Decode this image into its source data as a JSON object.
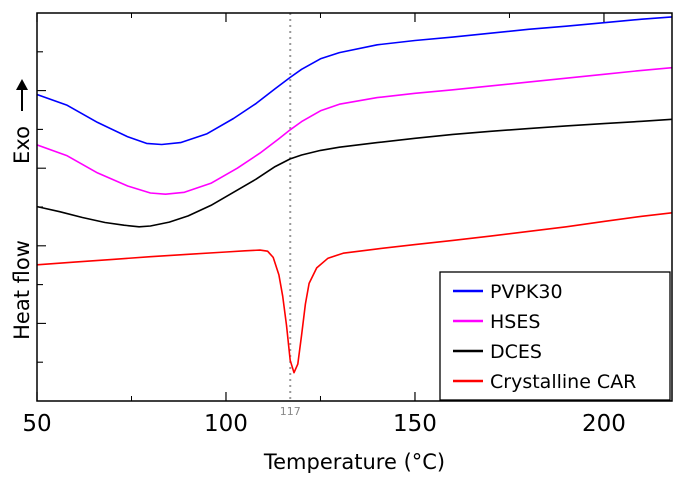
{
  "chart_data": {
    "type": "line",
    "xlabel": "Temperature (°C)",
    "ylabel": "Heat flow",
    "ylabel_arrow_label": "Exo",
    "xlim": [
      50,
      218
    ],
    "ylim": [
      0,
      100
    ],
    "x_ticks": [
      50,
      100,
      150,
      200
    ],
    "x_minor_ticks": [
      75,
      125,
      175
    ],
    "y_ticks_unlabeled": [
      10,
      20,
      30,
      40,
      50,
      60,
      70,
      80,
      90
    ],
    "grid": false,
    "legend_position": "bottom-right",
    "annotation": {
      "label": "117",
      "x": 117,
      "style": "dotted vertical line"
    },
    "series": [
      {
        "name": "PVPK30",
        "color": "#0000ff",
        "points": [
          [
            50,
            79
          ],
          [
            58,
            76.2
          ],
          [
            66,
            71.8
          ],
          [
            74,
            68.1
          ],
          [
            79,
            66.4
          ],
          [
            83,
            66.1
          ],
          [
            88,
            66.6
          ],
          [
            95,
            68.9
          ],
          [
            102,
            72.8
          ],
          [
            108,
            76.7
          ],
          [
            113,
            80.5
          ],
          [
            117,
            83.4
          ],
          [
            120,
            85.5
          ],
          [
            125,
            88.2
          ],
          [
            130,
            89.8
          ],
          [
            140,
            91.8
          ],
          [
            150,
            92.9
          ],
          [
            160,
            93.8
          ],
          [
            170,
            94.8
          ],
          [
            180,
            95.8
          ],
          [
            190,
            96.6
          ],
          [
            200,
            97.5
          ],
          [
            210,
            98.4
          ],
          [
            218,
            99
          ]
        ]
      },
      {
        "name": "HSES",
        "color": "#ff00ff",
        "points": [
          [
            50,
            66
          ],
          [
            58,
            63.2
          ],
          [
            66,
            58.8
          ],
          [
            74,
            55.4
          ],
          [
            80,
            53.6
          ],
          [
            84,
            53.3
          ],
          [
            89,
            53.8
          ],
          [
            96,
            56.1
          ],
          [
            103,
            60
          ],
          [
            109,
            63.9
          ],
          [
            114,
            67.6
          ],
          [
            117,
            69.9
          ],
          [
            120,
            72
          ],
          [
            125,
            74.8
          ],
          [
            130,
            76.5
          ],
          [
            140,
            78.2
          ],
          [
            150,
            79.3
          ],
          [
            160,
            80.2
          ],
          [
            170,
            81.2
          ],
          [
            180,
            82.2
          ],
          [
            190,
            83.2
          ],
          [
            200,
            84.2
          ],
          [
            210,
            85.2
          ],
          [
            218,
            85.9
          ]
        ]
      },
      {
        "name": "DCES",
        "color": "#000000",
        "points": [
          [
            50,
            50.1
          ],
          [
            56,
            48.8
          ],
          [
            62,
            47.3
          ],
          [
            68,
            46
          ],
          [
            73,
            45.3
          ],
          [
            77,
            44.9
          ],
          [
            80,
            45.1
          ],
          [
            85,
            46.1
          ],
          [
            90,
            47.7
          ],
          [
            96,
            50.4
          ],
          [
            102,
            53.8
          ],
          [
            108,
            57.2
          ],
          [
            113,
            60.4
          ],
          [
            117,
            62.4
          ],
          [
            120,
            63.4
          ],
          [
            125,
            64.6
          ],
          [
            130,
            65.4
          ],
          [
            140,
            66.6
          ],
          [
            150,
            67.7
          ],
          [
            160,
            68.7
          ],
          [
            170,
            69.5
          ],
          [
            180,
            70.2
          ],
          [
            190,
            70.9
          ],
          [
            200,
            71.5
          ],
          [
            210,
            72.1
          ],
          [
            218,
            72.6
          ]
        ]
      },
      {
        "name": "Crystalline CAR",
        "color": "#ff0000",
        "points": [
          [
            50,
            35.1
          ],
          [
            60,
            35.8
          ],
          [
            70,
            36.5
          ],
          [
            80,
            37.2
          ],
          [
            90,
            37.8
          ],
          [
            100,
            38.4
          ],
          [
            105,
            38.7
          ],
          [
            109,
            38.9
          ],
          [
            111,
            38.6
          ],
          [
            112.5,
            37
          ],
          [
            114,
            32.5
          ],
          [
            115,
            27
          ],
          [
            116,
            19.5
          ],
          [
            117,
            10.5
          ],
          [
            118,
            7.3
          ],
          [
            119,
            9.5
          ],
          [
            120,
            17
          ],
          [
            121,
            25
          ],
          [
            122,
            30.3
          ],
          [
            124,
            34.3
          ],
          [
            127,
            36.8
          ],
          [
            131,
            38.1
          ],
          [
            140,
            39.2
          ],
          [
            150,
            40.3
          ],
          [
            160,
            41.4
          ],
          [
            170,
            42.5
          ],
          [
            180,
            43.7
          ],
          [
            190,
            44.9
          ],
          [
            200,
            46.3
          ],
          [
            210,
            47.6
          ],
          [
            218,
            48.5
          ]
        ]
      }
    ]
  }
}
